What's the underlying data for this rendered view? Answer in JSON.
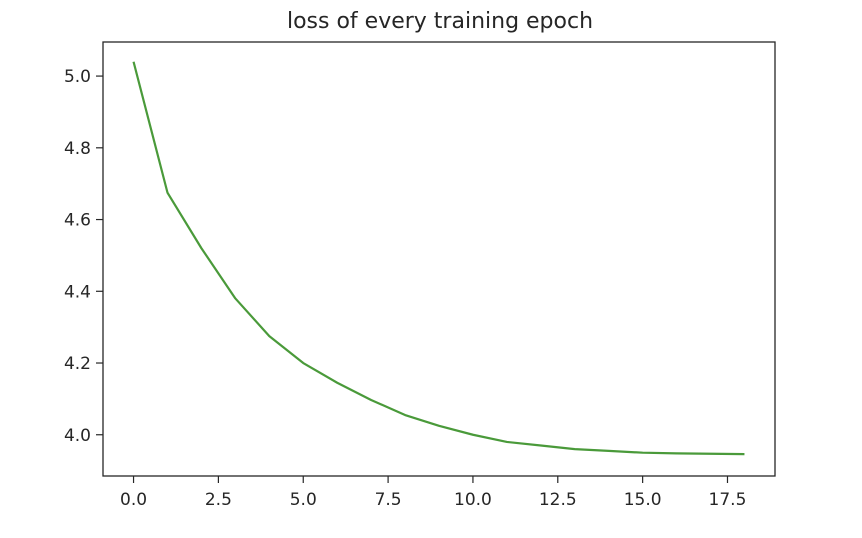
{
  "chart_data": {
    "type": "line",
    "title": "loss of every training epoch",
    "xlabel": "",
    "ylabel": "",
    "x": [
      0,
      1,
      2,
      3,
      4,
      5,
      6,
      7,
      8,
      9,
      10,
      11,
      12,
      13,
      14,
      15,
      16,
      17,
      18
    ],
    "series": [
      {
        "values": [
          5.04,
          4.675,
          4.52,
          4.38,
          4.275,
          4.2,
          4.145,
          4.097,
          4.055,
          4.025,
          4.0,
          3.98,
          3.97,
          3.96,
          3.955,
          3.95,
          3.948,
          3.947,
          3.946
        ]
      }
    ],
    "xlim": [
      -0.9,
      18.9
    ],
    "ylim": [
      3.885,
      5.095
    ],
    "xticks": [
      0.0,
      2.5,
      5.0,
      7.5,
      10.0,
      12.5,
      15.0,
      17.5
    ],
    "xtick_labels": [
      "0.0",
      "2.5",
      "5.0",
      "7.5",
      "10.0",
      "12.5",
      "15.0",
      "17.5"
    ],
    "yticks": [
      4.0,
      4.2,
      4.4,
      4.6,
      4.8,
      5.0
    ],
    "ytick_labels": [
      "4.0",
      "4.2",
      "4.4",
      "4.6",
      "4.8",
      "5.0"
    ],
    "grid": false,
    "colors": {
      "line": "#4a9a3a",
      "axes": "#262626"
    }
  }
}
